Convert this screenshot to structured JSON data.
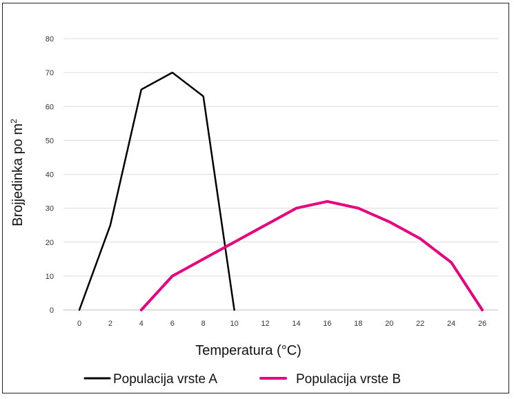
{
  "chart_data": {
    "type": "line",
    "xlabel": "Temperatura (°C)",
    "ylabel": "Brojjedinka po m",
    "ylabel_sup": "2",
    "x_ticks": [
      0,
      2,
      4,
      6,
      8,
      10,
      12,
      14,
      16,
      18,
      20,
      22,
      24,
      26
    ],
    "y_ticks": [
      0,
      10,
      20,
      30,
      40,
      50,
      60,
      70,
      80
    ],
    "xlim": [
      0,
      26
    ],
    "ylim": [
      0,
      80
    ],
    "grid": "horizontal",
    "legend_position": "bottom",
    "series": [
      {
        "name": "Populacija vrste A",
        "color": "#000000",
        "points": [
          [
            0,
            0
          ],
          [
            2,
            25
          ],
          [
            4,
            65
          ],
          [
            6,
            70
          ],
          [
            8,
            63
          ],
          [
            10,
            0
          ]
        ]
      },
      {
        "name": "Populacija vrste B",
        "color": "#e6007e",
        "points": [
          [
            4,
            0
          ],
          [
            6,
            10
          ],
          [
            8,
            15
          ],
          [
            10,
            20
          ],
          [
            12,
            25
          ],
          [
            14,
            30
          ],
          [
            16,
            32
          ],
          [
            18,
            30
          ],
          [
            20,
            26
          ],
          [
            22,
            21
          ],
          [
            24,
            14
          ],
          [
            26,
            0
          ]
        ]
      }
    ]
  }
}
